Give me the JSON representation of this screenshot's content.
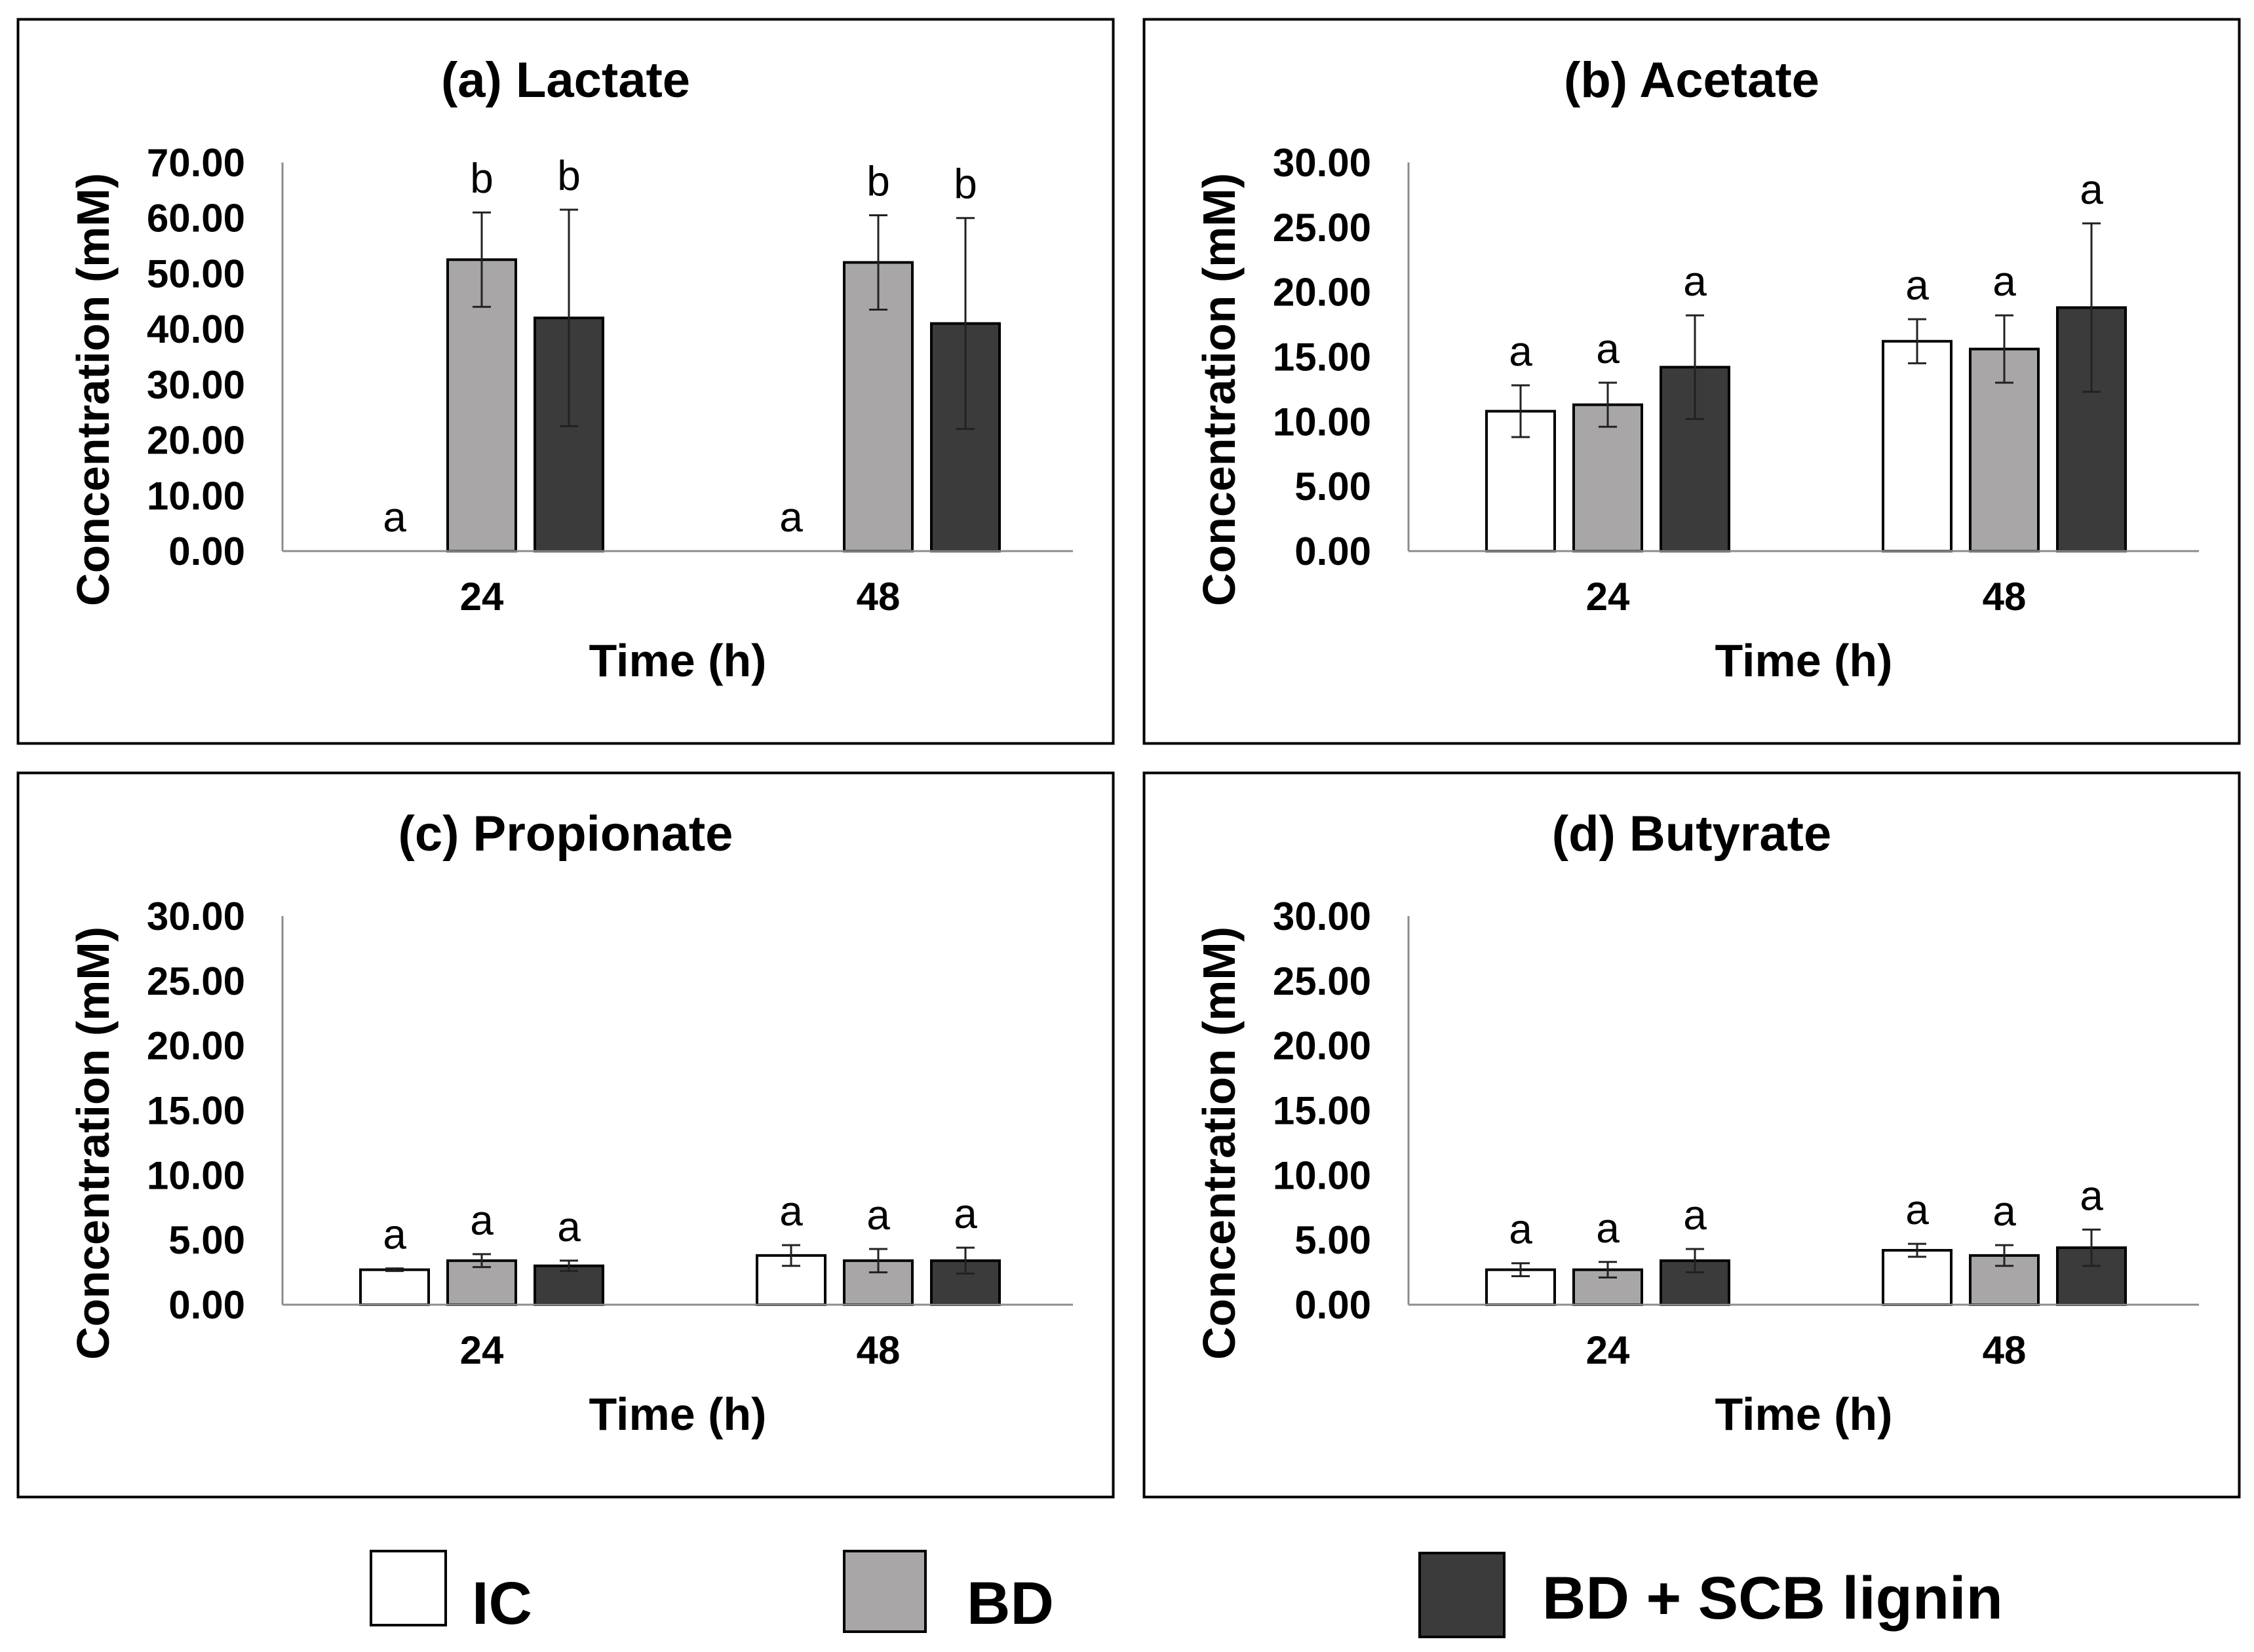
{
  "legend": [
    {
      "label": "IC",
      "color": "#ffffff"
    },
    {
      "label": "BD",
      "color": "#a8a6a6"
    },
    {
      "label": "BD + SCB lignin",
      "color": "#3b3b3b"
    }
  ],
  "chart_data": [
    {
      "type": "bar",
      "title": "(a) Lactate",
      "xlabel": "Time (h)",
      "ylabel": "Concentration (mM)",
      "categories": [
        "24",
        "48"
      ],
      "ylim": [
        0,
        70
      ],
      "yticks": [
        "0.00",
        "10.00",
        "20.00",
        "30.00",
        "40.00",
        "50.00",
        "60.00",
        "70.00"
      ],
      "series": [
        {
          "name": "IC",
          "values": [
            0,
            0
          ],
          "errors": [
            0,
            0
          ],
          "labels": [
            "a",
            "a"
          ]
        },
        {
          "name": "BD",
          "values": [
            52.5,
            52.0
          ],
          "errors": [
            8.5,
            8.5
          ],
          "labels": [
            "b",
            "b"
          ]
        },
        {
          "name": "BD + SCB lignin",
          "values": [
            42.0,
            41.0
          ],
          "errors": [
            19.5,
            19.0
          ],
          "labels": [
            "b",
            "b"
          ]
        }
      ]
    },
    {
      "type": "bar",
      "title": "(b) Acetate",
      "xlabel": "Time (h)",
      "ylabel": "Concentration (mM)",
      "categories": [
        "24",
        "48"
      ],
      "ylim": [
        0,
        30
      ],
      "yticks": [
        "0.00",
        "5.00",
        "10.00",
        "15.00",
        "20.00",
        "25.00",
        "30.00"
      ],
      "series": [
        {
          "name": "IC",
          "values": [
            10.8,
            16.2
          ],
          "errors": [
            2.0,
            1.7
          ],
          "labels": [
            "a",
            "a"
          ]
        },
        {
          "name": "BD",
          "values": [
            11.3,
            15.6
          ],
          "errors": [
            1.7,
            2.6
          ],
          "labels": [
            "a",
            "a"
          ]
        },
        {
          "name": "BD + SCB lignin",
          "values": [
            14.2,
            18.8
          ],
          "errors": [
            4.0,
            6.5
          ],
          "labels": [
            "a",
            "a"
          ]
        }
      ]
    },
    {
      "type": "bar",
      "title": "(c) Propionate",
      "xlabel": "Time (h)",
      "ylabel": "Concentration (mM)",
      "categories": [
        "24",
        "48"
      ],
      "ylim": [
        0,
        30
      ],
      "yticks": [
        "0.00",
        "5.00",
        "10.00",
        "15.00",
        "20.00",
        "25.00",
        "30.00"
      ],
      "series": [
        {
          "name": "IC",
          "values": [
            2.7,
            3.8
          ],
          "errors": [
            0.1,
            0.8
          ],
          "labels": [
            "a",
            "a"
          ]
        },
        {
          "name": "BD",
          "values": [
            3.4,
            3.4
          ],
          "errors": [
            0.5,
            0.9
          ],
          "labels": [
            "a",
            "a"
          ]
        },
        {
          "name": "BD + SCB lignin",
          "values": [
            3.0,
            3.4
          ],
          "errors": [
            0.4,
            1.0
          ],
          "labels": [
            "a",
            "a"
          ]
        }
      ]
    },
    {
      "type": "bar",
      "title": "(d) Butyrate",
      "xlabel": "Time (h)",
      "ylabel": "Concentration (mM)",
      "categories": [
        "24",
        "48"
      ],
      "ylim": [
        0,
        30
      ],
      "yticks": [
        "0.00",
        "5.00",
        "10.00",
        "15.00",
        "20.00",
        "25.00",
        "30.00"
      ],
      "series": [
        {
          "name": "IC",
          "values": [
            2.7,
            4.2
          ],
          "errors": [
            0.5,
            0.5
          ],
          "labels": [
            "a",
            "a"
          ]
        },
        {
          "name": "BD",
          "values": [
            2.7,
            3.8
          ],
          "errors": [
            0.6,
            0.8
          ],
          "labels": [
            "a",
            "a"
          ]
        },
        {
          "name": "BD + SCB lignin",
          "values": [
            3.4,
            4.4
          ],
          "errors": [
            0.9,
            1.4
          ],
          "labels": [
            "a",
            "a"
          ]
        }
      ]
    }
  ]
}
